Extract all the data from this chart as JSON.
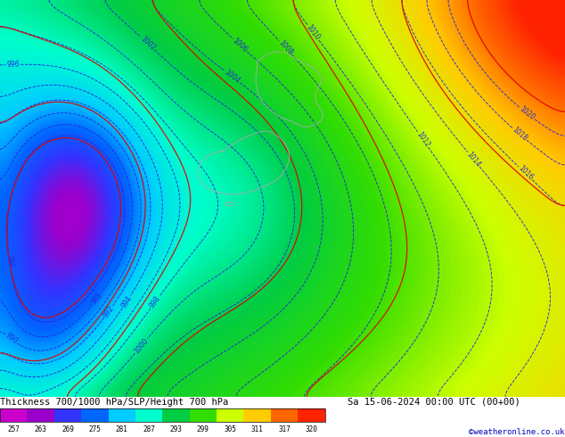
{
  "title_left": "Thickness 700/1000 hPa/SLP/Height 700 hPa",
  "title_right": "Sa 15-06-2024 00:00 UTC (00+00)",
  "credit": "©weatheronline.co.uk",
  "colorbar_values": [
    257,
    263,
    269,
    275,
    281,
    287,
    293,
    299,
    305,
    311,
    317,
    320
  ],
  "colorbar_colors": [
    "#cc00cc",
    "#9900cc",
    "#3333ff",
    "#0066ff",
    "#00ccff",
    "#00ffcc",
    "#00cc44",
    "#33dd00",
    "#ccff00",
    "#ffcc00",
    "#ff6600",
    "#ff2200"
  ],
  "fig_width": 6.34,
  "fig_height": 4.9,
  "dpi": 100,
  "vmin": 257,
  "vmax": 323,
  "text_color": "#000000",
  "credit_color": "#0000bb",
  "blue_contour_color": "#2222dd",
  "red_contour_color": "#dd0000"
}
